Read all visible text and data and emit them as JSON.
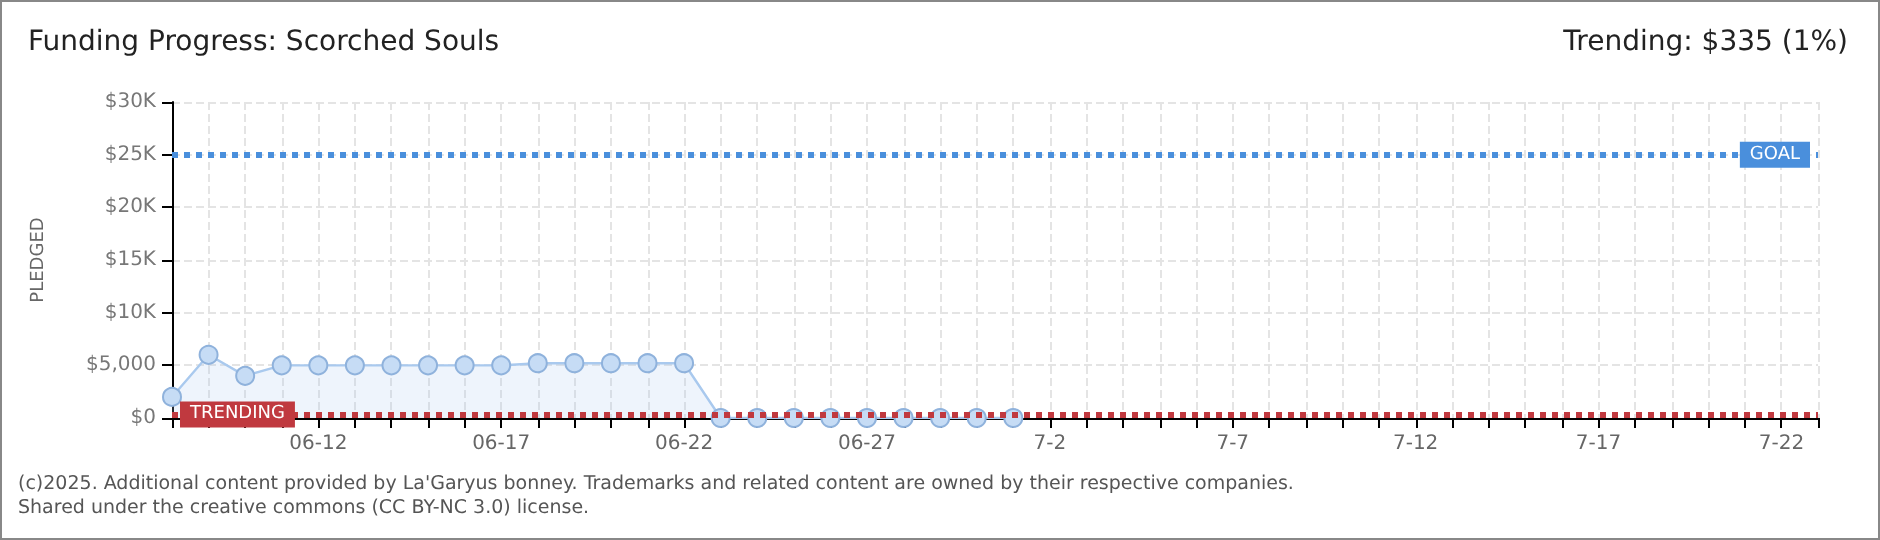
{
  "chart_data": {
    "type": "area",
    "title": "Funding Progress: Scorched Souls",
    "subtitle": "Trending: $335 (1%)",
    "ylabel": "PLEDGED",
    "categories": [
      null,
      null,
      null,
      null,
      "06-12",
      null,
      null,
      null,
      null,
      "06-17",
      null,
      null,
      null,
      null,
      "06-22",
      null,
      null,
      null,
      null,
      "06-27",
      null,
      null,
      null,
      null,
      "7-2",
      null,
      null,
      null,
      null,
      "7-7",
      null,
      null,
      null,
      null,
      "7-12",
      null,
      null,
      null,
      null,
      "7-17",
      null,
      null,
      null,
      null,
      "7-22",
      null
    ],
    "series": [
      {
        "color": "#a9c9ee",
        "values": [
          2000,
          6000,
          4000,
          5000,
          5000,
          5000,
          5000,
          5000,
          5000,
          5000,
          5200,
          5200,
          5200,
          5200,
          5200,
          0,
          0,
          0,
          0,
          0,
          0,
          0,
          0,
          0,
          null,
          null,
          null,
          null,
          null,
          null,
          null,
          null,
          null,
          null,
          null,
          null,
          null,
          null,
          null,
          null,
          null,
          null,
          null,
          null,
          null,
          null
        ]
      }
    ],
    "ylim": [
      0,
      30000
    ],
    "yticks": [
      {
        "value": 0,
        "label": "$0"
      },
      {
        "value": 5000,
        "label": "$5,000"
      },
      {
        "value": 10000,
        "label": "$10K"
      },
      {
        "value": 15000,
        "label": "$15K"
      },
      {
        "value": 20000,
        "label": "$20K"
      },
      {
        "value": 25000,
        "label": "$25K"
      },
      {
        "value": 30000,
        "label": "$30K"
      }
    ],
    "ref_lines": [
      {
        "axis": "y",
        "value": 25000,
        "label": "GOAL",
        "color": "#4a8fdc",
        "line_style": "dotted"
      },
      {
        "axis": "y",
        "value": 335,
        "label": "TRENDING",
        "color": "#c0393f",
        "line_style": "dotted"
      }
    ],
    "annotations": [
      "(c)2025. Additional content provided by La'Garyus bonney. Trademarks and related content are owned by their respective companies.",
      "Shared under the creative commons (CC BY-NC 3.0) license."
    ],
    "grid": true,
    "marker": "circle",
    "line_style": "solid"
  }
}
